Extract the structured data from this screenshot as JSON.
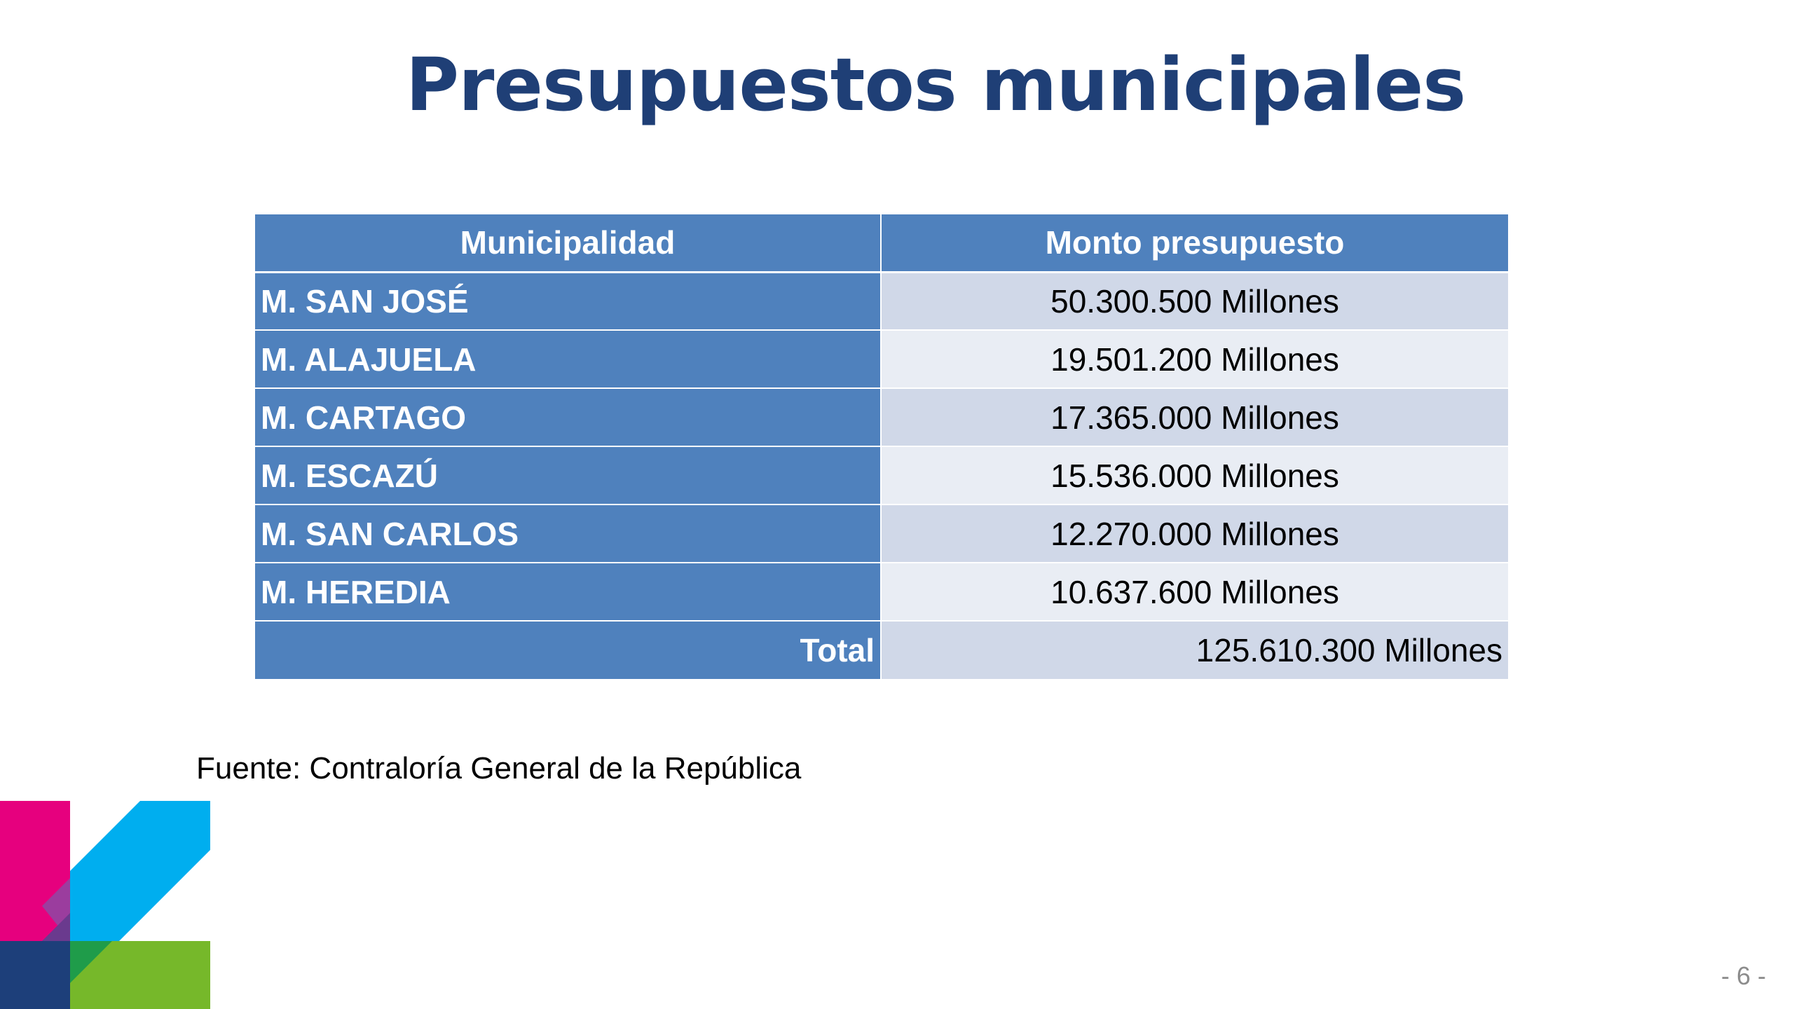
{
  "slide": {
    "title": "Presupuestos municipales",
    "source": "Fuente: Contraloría General de la República",
    "page_number": "- 6 -"
  },
  "table": {
    "headers": [
      "Municipalidad",
      "Monto presupuesto"
    ],
    "rows": [
      {
        "municipality": "M. SAN JOSÉ",
        "amount": "50.300.500 Millones"
      },
      {
        "municipality": "M. ALAJUELA",
        "amount": "19.501.200 Millones"
      },
      {
        "municipality": "M. CARTAGO",
        "amount": "17.365.000 Millones"
      },
      {
        "municipality": "M. ESCAZÚ",
        "amount": "15.536.000 Millones"
      },
      {
        "municipality": "M. SAN CARLOS",
        "amount": "12.270.000 Millones"
      },
      {
        "municipality": "M. HEREDIA",
        "amount": "10.637.600 Millones"
      }
    ],
    "total_label": "Total",
    "total_amount": "125.610.300 Millones"
  },
  "colors": {
    "title": "#1f3f76",
    "header_bg": "#4f81bd",
    "row_band_1": "#d0d8e8",
    "row_band_2": "#e9edf4",
    "logo_magenta": "#e6007e",
    "logo_cyan": "#00aeef",
    "logo_green": "#76b82a",
    "logo_navy": "#1d3f7a"
  },
  "icons": {
    "logo": "colored-geometric-k-logo"
  }
}
